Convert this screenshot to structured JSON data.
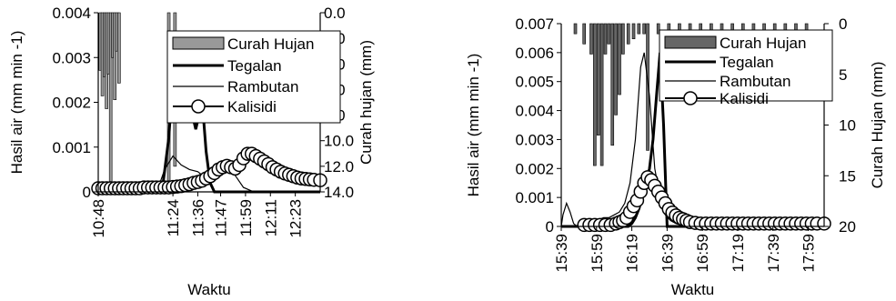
{
  "chart_data": [
    {
      "type": "line",
      "xlabel": "Waktu",
      "ylabel": "Hasil air (mm min -1)",
      "y2label": "Curah hujan (mm)",
      "ylim": [
        0,
        0.004
      ],
      "y2lim": [
        0,
        14
      ],
      "y2_inverted": true,
      "xlim": [
        "10:48",
        "12:35"
      ],
      "x_ticks": [
        "10:48",
        "11:24",
        "11:36",
        "11:47",
        "11:59",
        "12:11",
        "12:23"
      ],
      "y_ticks": [
        "0",
        "0.001",
        "0.002",
        "0.003",
        "0.004"
      ],
      "y2_ticks": [
        "0.0",
        "2.0",
        "4.0",
        "6.0",
        "8.0",
        "10.0",
        "12.0",
        "14.0"
      ],
      "legend": [
        "Curah Hujan",
        "Tegalan",
        "Rambutan",
        "Kalisidi"
      ],
      "legend_position": "top-right",
      "series": [
        {
          "name": "Curah Hujan",
          "kind": "bar",
          "axis": "right",
          "color": "#999999",
          "x": [
            "10:49",
            "10:50",
            "10:51",
            "10:52",
            "10:53",
            "10:54",
            "10:55",
            "10:56",
            "10:57",
            "10:58",
            "11:22",
            "11:25"
          ],
          "values": [
            4.5,
            6.5,
            5.0,
            7.5,
            4.8,
            14.0,
            3.5,
            6.8,
            3.0,
            5.5,
            13.5,
            12.0
          ]
        },
        {
          "name": "Tegalan",
          "kind": "line",
          "axis": "left",
          "color": "#000000",
          "x": [
            "10:48",
            "11:15",
            "11:19",
            "11:22",
            "11:24",
            "11:26",
            "11:28",
            "11:30",
            "11:32",
            "11:34",
            "11:35",
            "11:36",
            "11:38",
            "11:40",
            "11:42",
            "11:44",
            "12:35"
          ],
          "values": [
            0,
            0,
            0.0001,
            0.0012,
            0.0025,
            0.0029,
            0.0027,
            0.0023,
            0.002,
            0.0016,
            0.0014,
            0.0016,
            0.0021,
            0.0009,
            0.0002,
            0,
            0
          ]
        },
        {
          "name": "Rambutan",
          "kind": "line",
          "axis": "left",
          "color": "#000000",
          "x": [
            "10:48",
            "11:12",
            "11:17",
            "11:20",
            "11:24",
            "11:28",
            "11:32",
            "11:36",
            "11:40",
            "11:44",
            "11:48",
            "11:52",
            "11:55",
            "11:58",
            "12:03",
            "12:35"
          ],
          "values": [
            0,
            0,
            0.0001,
            0.0005,
            0.0008,
            0.0006,
            0.0005,
            0.00045,
            0.0003,
            0.00025,
            0.0004,
            0.0005,
            0.0003,
            0.0001,
            0,
            0
          ]
        },
        {
          "name": "Kalisidi",
          "kind": "line-marker",
          "axis": "left",
          "color": "#000000",
          "x": [
            "10:48",
            "10:50",
            "10:52",
            "10:54",
            "10:56",
            "10:58",
            "11:00",
            "11:02",
            "11:04",
            "11:06",
            "11:08",
            "11:10",
            "11:12",
            "11:14",
            "11:16",
            "11:18",
            "11:20",
            "11:22",
            "11:24",
            "11:26",
            "11:28",
            "11:30",
            "11:32",
            "11:34",
            "11:36",
            "11:38",
            "11:40",
            "11:42",
            "11:44",
            "11:46",
            "11:48",
            "11:50",
            "11:52",
            "11:54",
            "11:56",
            "11:58",
            "12:00",
            "12:02",
            "12:04",
            "12:06",
            "12:08",
            "12:10",
            "12:12",
            "12:14",
            "12:16",
            "12:18",
            "12:20",
            "12:22",
            "12:24",
            "12:26",
            "12:28",
            "12:30",
            "12:32",
            "12:35"
          ],
          "values": [
            8e-05,
            8e-05,
            8e-05,
            8e-05,
            8e-05,
            8e-05,
            8e-05,
            8e-05,
            8e-05,
            8e-05,
            8e-05,
            0.0001,
            0.0001,
            0.0001,
            0.0001,
            0.0001,
            0.0001,
            0.0001,
            0.00011,
            0.00012,
            0.00013,
            0.00015,
            0.00017,
            0.0002,
            0.00022,
            0.00025,
            0.0003,
            0.00035,
            0.00042,
            0.0005,
            0.00055,
            0.00058,
            0.00055,
            0.00052,
            0.0006,
            0.00075,
            0.00085,
            0.00085,
            0.0008,
            0.00074,
            0.00068,
            0.00062,
            0.00055,
            0.0005,
            0.00045,
            0.00041,
            0.00038,
            0.00035,
            0.00032,
            0.0003,
            0.00029,
            0.00028,
            0.00027,
            0.00026
          ]
        }
      ]
    },
    {
      "type": "line",
      "xlabel": "Waktu",
      "ylabel": "Hasil air (mm min -1)",
      "y2label": "Curah Hujan (mm)",
      "ylim": [
        0,
        0.007
      ],
      "y2lim": [
        0,
        20
      ],
      "y2_inverted": true,
      "xlim": [
        "15:39",
        "18:08"
      ],
      "x_ticks": [
        "15:39",
        "15:59",
        "16:19",
        "16:39",
        "16:59",
        "17:19",
        "17:39",
        "17:59"
      ],
      "y_ticks": [
        "0",
        "0.001",
        "0.002",
        "0.003",
        "0.004",
        "0.005",
        "0.006",
        "0.007"
      ],
      "y2_ticks": [
        "0",
        "5",
        "10",
        "15",
        "20"
      ],
      "legend": [
        "Curah Hujan",
        "Tegalan",
        "Rambutan",
        "Kalisidi"
      ],
      "legend_position": "top-right",
      "series": [
        {
          "name": "Curah Hujan",
          "kind": "bar",
          "axis": "right",
          "color": "#666666",
          "x": [
            "15:47",
            "15:52",
            "15:56",
            "15:58",
            "16:00",
            "16:02",
            "16:04",
            "16:06",
            "16:08",
            "16:10",
            "16:12",
            "16:14",
            "16:17",
            "16:20",
            "16:23",
            "16:26",
            "16:28",
            "16:34",
            "16:40",
            "16:46",
            "16:52",
            "16:58",
            "17:04",
            "17:10",
            "17:16",
            "17:22",
            "17:28",
            "17:34",
            "17:40",
            "17:46",
            "17:52",
            "17:58"
          ],
          "values": [
            1,
            2,
            3,
            14,
            11,
            14,
            3,
            2,
            12,
            9,
            7,
            3,
            2,
            1.5,
            1,
            1,
            12.5,
            1,
            1,
            1,
            1,
            1,
            1,
            1,
            1,
            1,
            1,
            1,
            1,
            1,
            1,
            1
          ]
        },
        {
          "name": "Tegalan",
          "kind": "line",
          "axis": "left",
          "color": "#000000",
          "x": [
            "15:39",
            "16:17",
            "16:19",
            "16:21",
            "16:23",
            "16:25",
            "16:27",
            "16:29",
            "16:31",
            "16:33",
            "16:35",
            "16:37",
            "16:39",
            "18:08"
          ],
          "values": [
            0,
            0,
            0.0001,
            0.0003,
            0.0006,
            0.001,
            0.0015,
            0.002,
            0.003,
            0.0045,
            0.006,
            0.0035,
            0,
            0
          ]
        },
        {
          "name": "Rambutan",
          "kind": "line",
          "axis": "left",
          "color": "#000000",
          "x": [
            "15:39",
            "15:40",
            "15:42",
            "15:44",
            "15:46",
            "15:48",
            "15:51",
            "15:55",
            "15:59",
            "16:03",
            "16:06",
            "16:09",
            "16:12",
            "16:15",
            "16:18",
            "16:21",
            "16:24",
            "16:26",
            "16:29",
            "16:32",
            "16:35",
            "16:38",
            "16:41",
            "16:44",
            "16:50",
            "18:08"
          ],
          "values": [
            0,
            0.0004,
            0.0008,
            0.0005,
            0.0001,
            0,
            0,
            0.0001,
            0.0002,
            0.0003,
            0.0003,
            0.0004,
            0.0005,
            0.0008,
            0.0015,
            0.003,
            0.0055,
            0.006,
            0.0045,
            0.002,
            0.001,
            0.0004,
            0.0002,
            0.0001,
            0,
            0
          ]
        },
        {
          "name": "Kalisidi",
          "kind": "line-marker",
          "axis": "left",
          "color": "#000000",
          "x": [
            "15:52",
            "15:55",
            "15:58",
            "16:01",
            "16:04",
            "16:07",
            "16:10",
            "16:12",
            "16:14",
            "16:16",
            "16:18",
            "16:20",
            "16:22",
            "16:24",
            "16:26",
            "16:28",
            "16:30",
            "16:32",
            "16:34",
            "16:36",
            "16:38",
            "16:40",
            "16:42",
            "16:44",
            "16:46",
            "16:48",
            "16:50",
            "16:52",
            "16:55",
            "16:58",
            "17:01",
            "17:04",
            "17:07",
            "17:10",
            "17:13",
            "17:16",
            "17:19",
            "17:22",
            "17:25",
            "17:28",
            "17:31",
            "17:34",
            "17:37",
            "17:40",
            "17:43",
            "17:46",
            "17:49",
            "17:52",
            "17:55",
            "17:58",
            "18:01",
            "18:04",
            "18:08"
          ],
          "values": [
            5e-05,
            5e-05,
            5e-05,
            5e-05,
            5e-05,
            5e-05,
            0.0001,
            0.00015,
            0.0002,
            0.0003,
            0.0005,
            0.0007,
            0.0009,
            0.0012,
            0.0015,
            0.0017,
            0.0016,
            0.0014,
            0.0012,
            0.001,
            0.0008,
            0.0006,
            0.00048,
            0.00038,
            0.0003,
            0.00025,
            0.0002,
            0.00015,
            0.00012,
            0.0001,
            0.0001,
            0.0001,
            0.0001,
            0.0001,
            0.0001,
            0.0001,
            0.0001,
            0.0001,
            0.0001,
            0.0001,
            0.0001,
            0.0001,
            0.0001,
            0.0001,
            0.0001,
            0.0001,
            0.0001,
            0.0001,
            0.0001,
            0.0001,
            0.0001,
            0.0001,
            0.0001
          ]
        }
      ]
    }
  ]
}
